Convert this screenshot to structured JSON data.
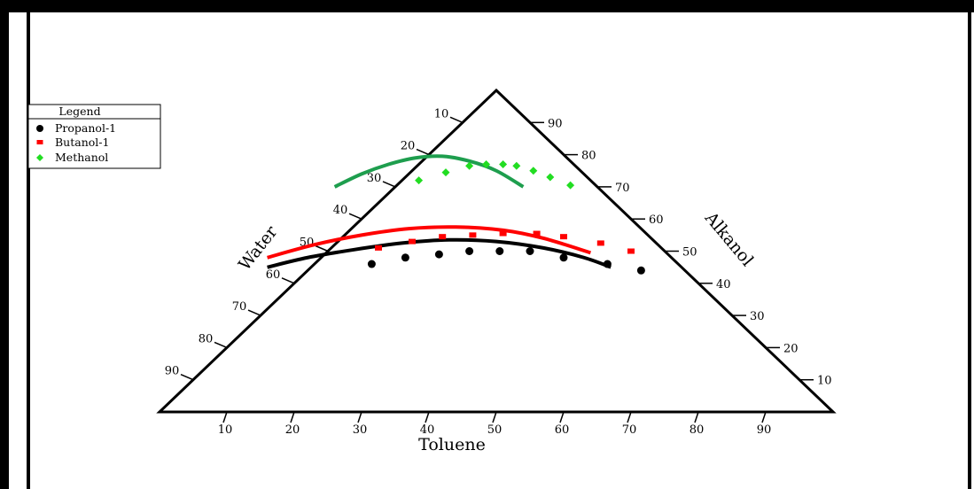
{
  "chart_data": {
    "type": "scatter",
    "subtype": "ternary",
    "title": "",
    "axes": {
      "bottom": {
        "label": "Toluene",
        "ticks": [
          10,
          20,
          30,
          40,
          50,
          60,
          70,
          80,
          90
        ]
      },
      "left": {
        "label": "Water",
        "ticks": [
          10,
          20,
          30,
          40,
          50,
          60,
          70,
          80,
          90
        ]
      },
      "right": {
        "label": "Alkanol",
        "ticks": [
          10,
          20,
          30,
          40,
          50,
          60,
          70,
          80,
          90
        ]
      }
    },
    "legend": {
      "title": "Legend",
      "placement": "top-left",
      "entries": [
        "Propanol-1",
        "Butanol-1",
        "Methanol"
      ]
    },
    "series": [
      {
        "name": "Propanol-1",
        "color": "#000000",
        "marker": "circle",
        "points": [
          {
            "x": 31.5,
            "a": 46
          },
          {
            "x": 36.5,
            "a": 48
          },
          {
            "x": 41.5,
            "a": 49
          },
          {
            "x": 46,
            "a": 50
          },
          {
            "x": 50.5,
            "a": 50
          },
          {
            "x": 55,
            "a": 50
          },
          {
            "x": 60,
            "a": 48
          },
          {
            "x": 66.5,
            "a": 46
          },
          {
            "x": 71.5,
            "a": 44
          }
        ],
        "fit_curve": [
          {
            "x": 16,
            "a": 45
          },
          {
            "x": 22,
            "a": 48
          },
          {
            "x": 29,
            "a": 50.5
          },
          {
            "x": 36,
            "a": 52.5
          },
          {
            "x": 43,
            "a": 53.5
          },
          {
            "x": 50,
            "a": 53
          },
          {
            "x": 57,
            "a": 51
          },
          {
            "x": 63,
            "a": 48
          },
          {
            "x": 67,
            "a": 45
          }
        ]
      },
      {
        "name": "Butanol-1",
        "color": "#ff0000",
        "marker": "square",
        "points": [
          {
            "x": 32.5,
            "a": 51
          },
          {
            "x": 37.5,
            "a": 53
          },
          {
            "x": 42,
            "a": 54.5
          },
          {
            "x": 46.5,
            "a": 55
          },
          {
            "x": 51,
            "a": 55.5
          },
          {
            "x": 56,
            "a": 55.5
          },
          {
            "x": 60,
            "a": 54.5
          },
          {
            "x": 65.5,
            "a": 52.5
          },
          {
            "x": 70,
            "a": 50
          }
        ],
        "fit_curve": [
          {
            "x": 16,
            "a": 48
          },
          {
            "x": 23,
            "a": 52
          },
          {
            "x": 30,
            "a": 55
          },
          {
            "x": 37,
            "a": 57
          },
          {
            "x": 44,
            "a": 57.5
          },
          {
            "x": 51,
            "a": 56.5
          },
          {
            "x": 57,
            "a": 54
          },
          {
            "x": 64,
            "a": 49.5
          }
        ]
      },
      {
        "name": "Methanol",
        "color": "#22dd22",
        "marker": "diamond",
        "points": [
          {
            "x": 38.5,
            "a": 72
          },
          {
            "x": 42.5,
            "a": 74.5
          },
          {
            "x": 46,
            "a": 76.5
          },
          {
            "x": 48.5,
            "a": 77
          },
          {
            "x": 51,
            "a": 77
          },
          {
            "x": 53,
            "a": 76.5
          },
          {
            "x": 55.5,
            "a": 75
          },
          {
            "x": 58,
            "a": 73
          },
          {
            "x": 61,
            "a": 70.5
          }
        ],
        "fit_curve": [
          {
            "x": 26,
            "a": 70
          },
          {
            "x": 30,
            "a": 74
          },
          {
            "x": 34,
            "a": 77
          },
          {
            "x": 38,
            "a": 79
          },
          {
            "x": 42,
            "a": 79.5
          },
          {
            "x": 46,
            "a": 78
          },
          {
            "x": 50,
            "a": 75
          },
          {
            "x": 54,
            "a": 70
          }
        ],
        "fit_color": "#1e9e4e"
      }
    ],
    "grid": false
  }
}
